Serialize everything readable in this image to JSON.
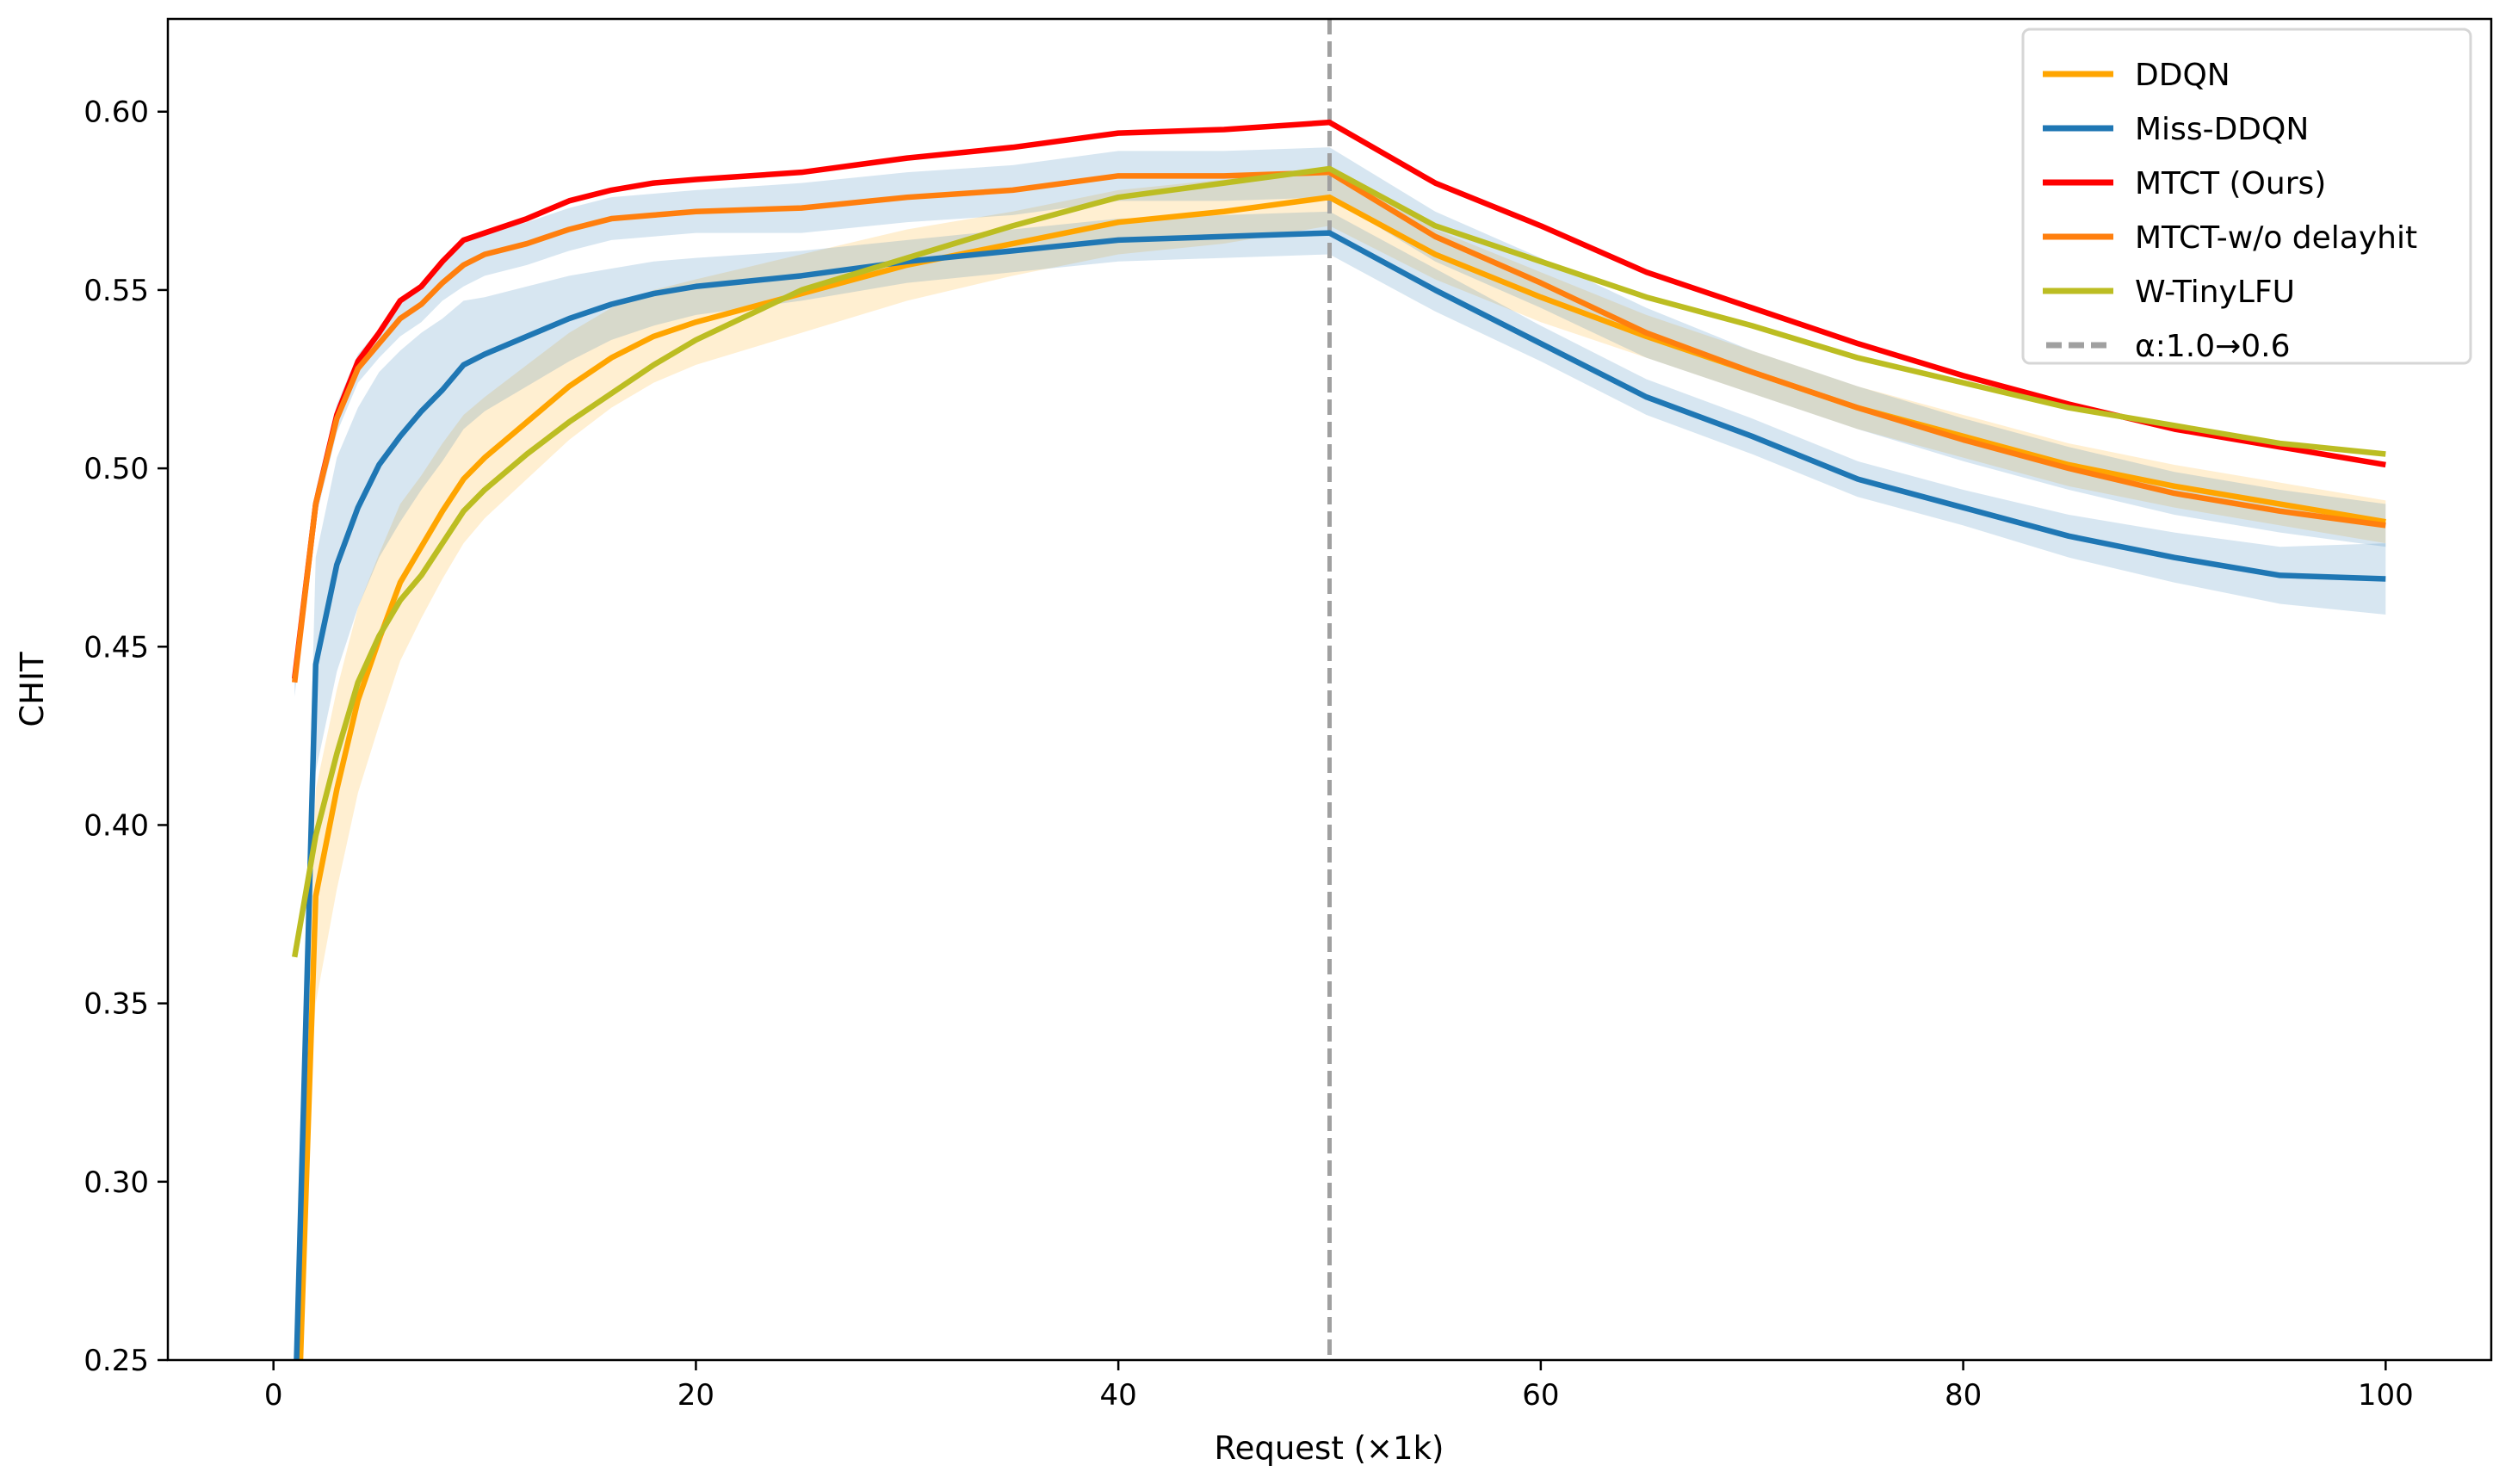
{
  "chart_data": {
    "type": "line",
    "title": "",
    "xlabel": "Request (×1k)",
    "ylabel": "CHIT",
    "xlim": [
      -5,
      105
    ],
    "ylim": [
      0.25,
      0.626
    ],
    "xticks": [
      0,
      20,
      40,
      60,
      80,
      100
    ],
    "yticks": [
      0.25,
      0.3,
      0.35,
      0.4,
      0.45,
      0.5,
      0.55,
      0.6
    ],
    "grid": false,
    "legend_position": "top-right",
    "x": [
      1,
      2,
      3,
      4,
      5,
      6,
      7,
      8,
      9,
      10,
      12,
      14,
      16,
      18,
      20,
      25,
      30,
      35,
      40,
      45,
      50,
      55,
      60,
      65,
      70,
      75,
      80,
      85,
      90,
      95,
      100
    ],
    "series": [
      {
        "name": "DDQN",
        "color": "#ffa500",
        "band_color": "#ffa500",
        "values": [
          0.2,
          0.38,
          0.41,
          0.435,
          0.452,
          0.468,
          0.478,
          0.488,
          0.497,
          0.503,
          0.513,
          0.523,
          0.531,
          0.537,
          0.541,
          0.549,
          0.557,
          0.563,
          0.569,
          0.572,
          0.576,
          0.56,
          0.548,
          0.537,
          0.527,
          0.517,
          0.509,
          0.501,
          0.495,
          0.49,
          0.485
        ],
        "ci": [
          0.03,
          0.03,
          0.028,
          0.026,
          0.024,
          0.022,
          0.02,
          0.019,
          0.018,
          0.017,
          0.016,
          0.015,
          0.014,
          0.013,
          0.012,
          0.011,
          0.01,
          0.009,
          0.009,
          0.009,
          0.008,
          0.007,
          0.007,
          0.006,
          0.006,
          0.006,
          0.006,
          0.006,
          0.006,
          0.006,
          0.006
        ]
      },
      {
        "name": "Miss-DDQN",
        "color": "#1f77b4",
        "band_color": "#1f77b4",
        "values": [
          0.23,
          0.445,
          0.473,
          0.489,
          0.501,
          0.509,
          0.516,
          0.522,
          0.529,
          0.532,
          0.537,
          0.542,
          0.546,
          0.549,
          0.551,
          0.554,
          0.558,
          0.561,
          0.564,
          0.565,
          0.566,
          0.55,
          0.535,
          0.52,
          0.509,
          0.497,
          0.489,
          0.481,
          0.475,
          0.47,
          0.469
        ],
        "ci": [
          0.02,
          0.03,
          0.03,
          0.028,
          0.026,
          0.024,
          0.022,
          0.02,
          0.018,
          0.016,
          0.014,
          0.012,
          0.01,
          0.009,
          0.008,
          0.007,
          0.006,
          0.006,
          0.006,
          0.006,
          0.006,
          0.006,
          0.005,
          0.005,
          0.005,
          0.005,
          0.005,
          0.006,
          0.007,
          0.008,
          0.01
        ]
      },
      {
        "name": "MTCT (Ours)",
        "color": "#ff0000",
        "values": [
          0.441,
          0.49,
          0.515,
          0.53,
          0.538,
          0.547,
          0.551,
          0.558,
          0.564,
          0.566,
          0.57,
          0.575,
          0.578,
          0.58,
          0.581,
          0.583,
          0.587,
          0.59,
          0.594,
          0.595,
          0.597,
          0.58,
          0.568,
          0.555,
          0.545,
          0.535,
          0.526,
          0.518,
          0.511,
          0.506,
          0.501
        ]
      },
      {
        "name": "MTCT-w/o delayhit",
        "color": "#ff7f0e",
        "band_color": "#1f77b4",
        "values": [
          0.44,
          0.49,
          0.514,
          0.528,
          0.535,
          0.542,
          0.546,
          0.552,
          0.557,
          0.56,
          0.563,
          0.567,
          0.57,
          0.571,
          0.572,
          0.573,
          0.576,
          0.578,
          0.582,
          0.582,
          0.583,
          0.565,
          0.552,
          0.538,
          0.527,
          0.517,
          0.508,
          0.5,
          0.493,
          0.488,
          0.484
        ],
        "ci": [
          0.004,
          0.004,
          0.004,
          0.004,
          0.004,
          0.005,
          0.005,
          0.005,
          0.006,
          0.006,
          0.006,
          0.006,
          0.006,
          0.006,
          0.006,
          0.007,
          0.007,
          0.007,
          0.007,
          0.007,
          0.007,
          0.007,
          0.007,
          0.007,
          0.006,
          0.006,
          0.006,
          0.006,
          0.006,
          0.006,
          0.006
        ]
      },
      {
        "name": "W-TinyLFU",
        "color": "#bcbd22",
        "values": [
          0.363,
          0.397,
          0.42,
          0.44,
          0.453,
          0.463,
          0.47,
          0.479,
          0.488,
          0.494,
          0.504,
          0.513,
          0.521,
          0.529,
          0.536,
          0.55,
          0.559,
          0.568,
          0.576,
          0.58,
          0.584,
          0.568,
          0.558,
          0.548,
          0.54,
          0.531,
          0.524,
          0.517,
          0.512,
          0.507,
          0.504
        ]
      }
    ],
    "vline": {
      "x": 50,
      "label": "α:1.0→0.6",
      "color": "#a0a0a0",
      "style": "dashed"
    }
  }
}
